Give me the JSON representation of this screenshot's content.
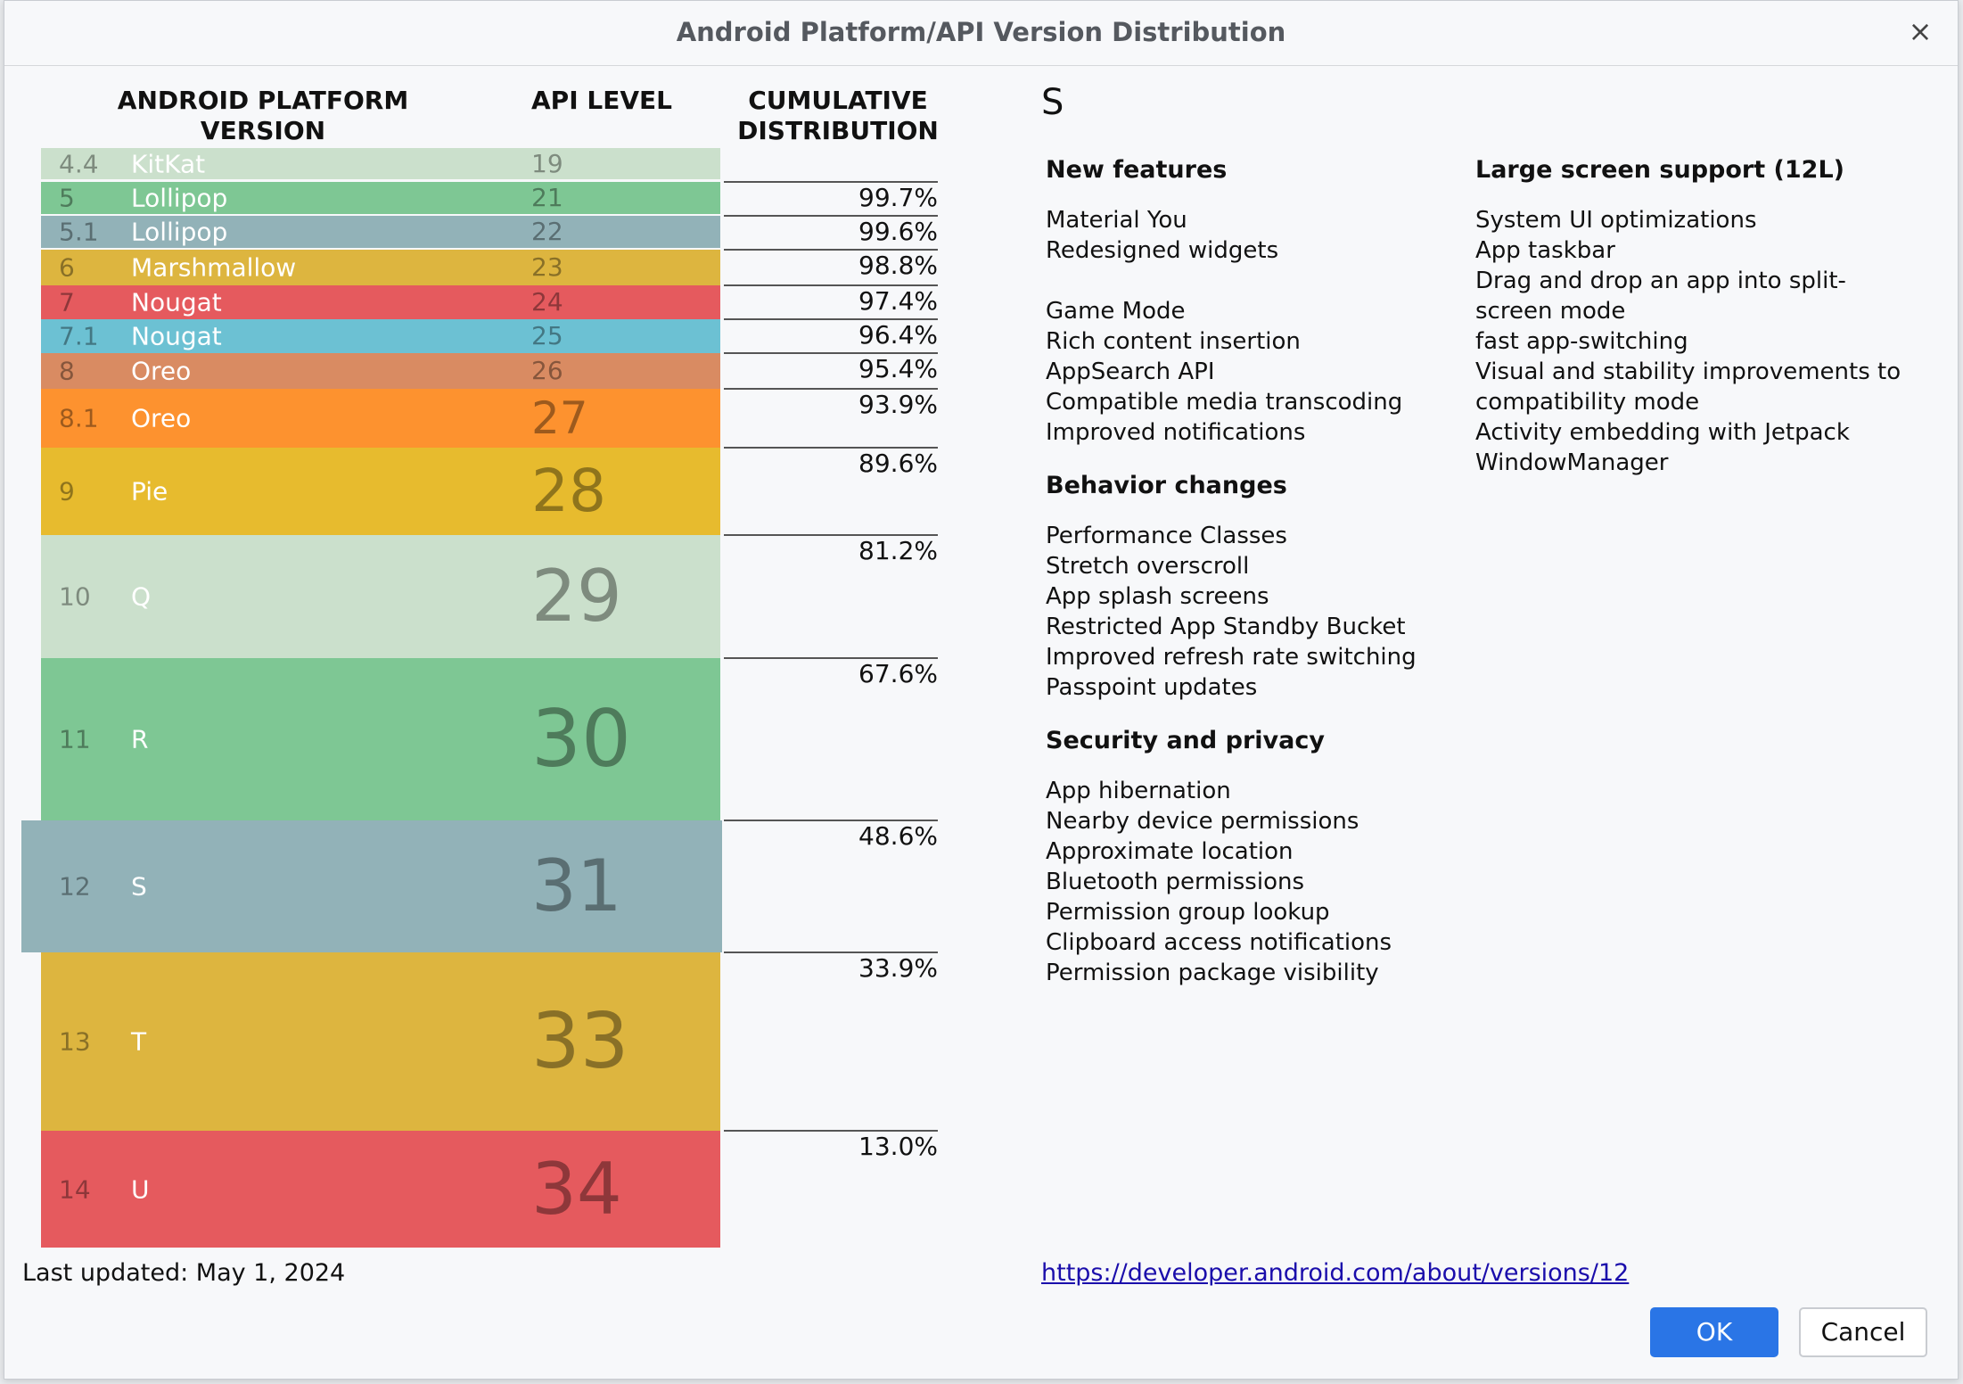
{
  "dialog": {
    "title": "Android Platform/API Version Distribution",
    "close_glyph": "×"
  },
  "table": {
    "headers": {
      "platform": "ANDROID PLATFORM VERSION",
      "api": "API LEVEL",
      "cumulative": "CUMULATIVE DISTRIBUTION"
    },
    "rows": [
      {
        "version": "4.4",
        "name": "KitKat",
        "api": "19",
        "color": "#cbe0cc"
      },
      {
        "version": "5",
        "name": "Lollipop",
        "api": "21",
        "color": "#7ec794"
      },
      {
        "version": "5.1",
        "name": "Lollipop",
        "api": "22",
        "color": "#92b2b8"
      },
      {
        "version": "6",
        "name": "Marshmallow",
        "api": "23",
        "color": "#ddb53f"
      },
      {
        "version": "7",
        "name": "Nougat",
        "api": "24",
        "color": "#e55a5e"
      },
      {
        "version": "7.1",
        "name": "Nougat",
        "api": "25",
        "color": "#6cc1d3"
      },
      {
        "version": "8",
        "name": "Oreo",
        "api": "26",
        "color": "#d98b62"
      },
      {
        "version": "8.1",
        "name": "Oreo",
        "api": "27",
        "color": "#fd922f"
      },
      {
        "version": "9",
        "name": "Pie",
        "api": "28",
        "color": "#e7bb2e"
      },
      {
        "version": "10",
        "name": "Q",
        "api": "29",
        "color": "#cbe0cc"
      },
      {
        "version": "11",
        "name": "R",
        "api": "30",
        "color": "#7ec794"
      },
      {
        "version": "12",
        "name": "S",
        "api": "31",
        "color": "#92b2b8",
        "selected": true
      },
      {
        "version": "13",
        "name": "T",
        "api": "33",
        "color": "#ddb53f"
      },
      {
        "version": "14",
        "name": "U",
        "api": "34",
        "color": "#e55a5e"
      }
    ],
    "cumulative": [
      "99.7%",
      "99.6%",
      "98.8%",
      "97.4%",
      "96.4%",
      "95.4%",
      "93.9%",
      "89.6%",
      "81.2%",
      "67.6%",
      "48.6%",
      "33.9%",
      "13.0%"
    ],
    "last_updated": "Last updated: May 1, 2024"
  },
  "details": {
    "title": "S",
    "new_features": {
      "heading": "New features",
      "group1": [
        "Material You",
        "Redesigned widgets"
      ],
      "group2": [
        "Game Mode",
        "Rich content insertion",
        "AppSearch API",
        "Compatible media transcoding",
        "Improved notifications"
      ]
    },
    "behavior_changes": {
      "heading": "Behavior changes",
      "items": [
        "Performance Classes",
        "Stretch overscroll",
        "App splash screens",
        "Restricted App Standby Bucket",
        "Improved refresh rate switching",
        "Passpoint updates"
      ]
    },
    "security": {
      "heading": "Security and privacy",
      "items": [
        "App hibernation",
        "Nearby device permissions",
        "Approximate location",
        "Bluetooth permissions",
        "Permission group lookup",
        "Clipboard access notifications",
        "Permission package visibility"
      ]
    },
    "large_screen": {
      "heading": "Large screen support (12L)",
      "items": [
        "System UI optimizations",
        "App taskbar",
        "Drag and drop an app into split-screen mode",
        "fast app-switching",
        "Visual and stability improvements to compatibility mode",
        "Activity embedding with Jetpack WindowManager"
      ]
    },
    "link": "https://developer.android.com/about/versions/12"
  },
  "buttons": {
    "ok": "OK",
    "cancel": "Cancel"
  }
}
